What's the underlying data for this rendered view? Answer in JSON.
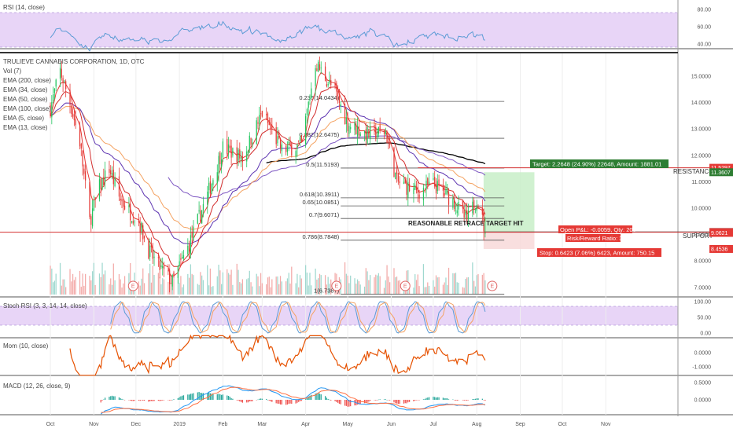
{
  "colors": {
    "up": "#26a69a",
    "down": "#ef5350",
    "green_candle": "#22c55e",
    "red_candle": "#e53935",
    "rsi_line": "#5b9bd5",
    "rsi_band": "#e8d5f7",
    "stoch_k": "#5b9bd5",
    "stoch_d": "#f4a261",
    "mom_line": "#e65100",
    "macd_line": "#2196f3",
    "signal_line": "#ff7043",
    "ema200": "#000000",
    "ema34": "#5e35b1",
    "ema50": "#f4a261",
    "ema100": "#7e57c2",
    "ema5": "#e53935",
    "ema13": "#d32f2f",
    "fib_line": "#555555",
    "support_line": "#d32f2f",
    "resistance_line": "#d32f2f",
    "target_box": "#c8efc8",
    "label_green": "#2e7d32",
    "label_red": "#e53935",
    "label_dark": "#424242"
  },
  "panels": {
    "rsi": {
      "title": "RSI (14, close)",
      "ticks": [
        "80.00",
        "60.00",
        "40.00"
      ]
    },
    "price": {
      "title_lines": [
        "TRULIEVE CANNABIS CORPORATION, 1D, OTC",
        "Vol (7)",
        "EMA (200, close)",
        "EMA (34, close)",
        "EMA (50, close)",
        "EMA (100, close)",
        "EMA (5, close)",
        "EMA (13, close)"
      ],
      "ticks": [
        "15.0000",
        "14.0000",
        "13.0000",
        "12.0000",
        "11.0000",
        "10.0000",
        "9.0000",
        "8.0000",
        "7.0000"
      ],
      "price_tags": [
        {
          "text": "11.5297",
          "price": 11.5297,
          "color": "#e53935"
        },
        {
          "text": "11.3607",
          "price": 11.3607,
          "color": "#2e7d32"
        },
        {
          "text": "9.0959",
          "price": 9.0959,
          "color": "#424242"
        },
        {
          "text": "9.0900",
          "price": 9.09,
          "color": "#e53935"
        },
        {
          "text": "9.0621",
          "price": 9.0621,
          "color": "#e53935"
        },
        {
          "text": "8.4536",
          "price": 8.4536,
          "color": "#e53935"
        }
      ]
    },
    "stoch": {
      "title": "Stoch RSI (3, 3, 14, 14, close)",
      "ticks": [
        "100.00",
        "50.00",
        "0.00"
      ]
    },
    "mom": {
      "title": "Mom (10, close)",
      "ticks": [
        "0.0000",
        "-1.0000"
      ]
    },
    "macd": {
      "title": "MACD (12, 26, close, 9)",
      "ticks": [
        "0.5000",
        "0.0000"
      ]
    }
  },
  "x_axis": {
    "labels": [
      "Oct",
      "Nov",
      "Dec",
      "2019",
      "Feb",
      "Mar",
      "Apr",
      "May",
      "Jun",
      "Jul",
      "Aug",
      "Sep",
      "Oct",
      "Nov"
    ]
  },
  "fib_levels": [
    {
      "label": "0.236(14.0434)",
      "price": 14.0434
    },
    {
      "label": "0.382(12.6475)",
      "price": 12.6475
    },
    {
      "label": "0.5(11.5193)",
      "price": 11.5193
    },
    {
      "label": "0.618(10.3911)",
      "price": 10.3911
    },
    {
      "label": "0.65(10.0851)",
      "price": 10.0851
    },
    {
      "label": "0.7(9.6071)",
      "price": 9.6071
    },
    {
      "label": "0.786(8.7848)",
      "price": 8.7848
    },
    {
      "label": "1(6.7387)",
      "price": 6.7387
    }
  ],
  "annotations": {
    "resistance": "RESISTANCE",
    "support": "SUPPORT",
    "retrace": "REASONABLE RETRACE TARGET HIT",
    "target": "Target: 2.2648 (24.90%) 22648, Amount: 1881.01",
    "open_pl": "Open P&L: -0.0059, Qty: 200",
    "risk_reward": "Risk/Reward Ratio: 3.53",
    "stop": "Stop: 0.6423 (7.06%) 6423, Amount: 750.15",
    "earnings_marker": "E"
  },
  "chart_data": {
    "type": "candlestick",
    "title": "TRULIEVE CANNABIS CORPORATION, 1D, OTC",
    "x_range": [
      "Oct 2018",
      "Nov 2019"
    ],
    "ylim": [
      6.4,
      16.0
    ],
    "price_segments": [
      {
        "date": "2018-10-01",
        "price": 13.8
      },
      {
        "date": "2018-10-08",
        "price": 15.2
      },
      {
        "date": "2018-10-15",
        "price": 14.0
      },
      {
        "date": "2018-10-22",
        "price": 12.5
      },
      {
        "date": "2018-10-29",
        "price": 9.5
      },
      {
        "date": "2018-11-05",
        "price": 10.8
      },
      {
        "date": "2018-11-12",
        "price": 11.5
      },
      {
        "date": "2018-11-19",
        "price": 10.4
      },
      {
        "date": "2018-11-26",
        "price": 9.9
      },
      {
        "date": "2018-12-03",
        "price": 9.5
      },
      {
        "date": "2018-12-10",
        "price": 8.4
      },
      {
        "date": "2018-12-17",
        "price": 7.8
      },
      {
        "date": "2018-12-27",
        "price": 7.2
      },
      {
        "date": "2019-01-07",
        "price": 8.5
      },
      {
        "date": "2019-01-14",
        "price": 9.5
      },
      {
        "date": "2019-01-21",
        "price": 10.5
      },
      {
        "date": "2019-02-01",
        "price": 12.3
      },
      {
        "date": "2019-02-15",
        "price": 11.9
      },
      {
        "date": "2019-03-01",
        "price": 13.6
      },
      {
        "date": "2019-03-15",
        "price": 12.2
      },
      {
        "date": "2019-03-29",
        "price": 12.4
      },
      {
        "date": "2019-04-08",
        "price": 15.5
      },
      {
        "date": "2019-04-22",
        "price": 14.4
      },
      {
        "date": "2019-05-01",
        "price": 13.2
      },
      {
        "date": "2019-05-15",
        "price": 12.8
      },
      {
        "date": "2019-05-28",
        "price": 12.9
      },
      {
        "date": "2019-06-05",
        "price": 11.0
      },
      {
        "date": "2019-06-19",
        "price": 10.6
      },
      {
        "date": "2019-07-01",
        "price": 10.9
      },
      {
        "date": "2019-07-15",
        "price": 10.3
      },
      {
        "date": "2019-07-25",
        "price": 9.5
      },
      {
        "date": "2019-08-01",
        "price": 10.4
      },
      {
        "date": "2019-08-07",
        "price": 9.1
      }
    ],
    "position": {
      "entry": 9.0959,
      "target": 11.3607,
      "stop": 8.4536,
      "qty": 200
    },
    "support": 9.09,
    "resistance": 11.5297
  }
}
